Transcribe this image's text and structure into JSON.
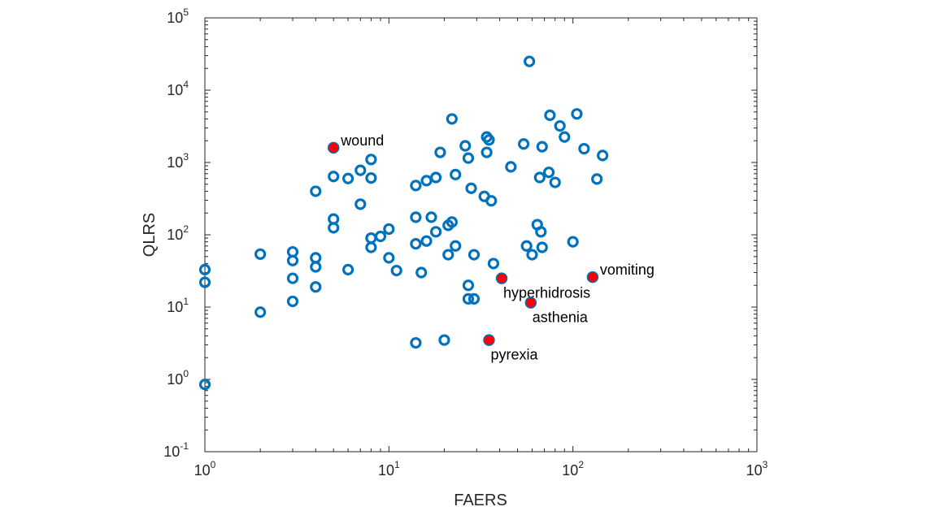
{
  "chart_data": {
    "type": "scatter",
    "title": "",
    "xlabel": "FAERS",
    "ylabel": "QLRS",
    "xscale": "log",
    "yscale": "log",
    "xlim": [
      1,
      1000
    ],
    "ylim": [
      0.1,
      100000
    ],
    "grid": false,
    "box": true,
    "x_ticks": [
      {
        "base": "10",
        "exp": "0"
      },
      {
        "base": "10",
        "exp": "1"
      },
      {
        "base": "10",
        "exp": "2"
      },
      {
        "base": "10",
        "exp": "3"
      }
    ],
    "y_ticks": [
      {
        "base": "10",
        "exp": "-1"
      },
      {
        "base": "10",
        "exp": "0"
      },
      {
        "base": "10",
        "exp": "1"
      },
      {
        "base": "10",
        "exp": "2"
      },
      {
        "base": "10",
        "exp": "3"
      },
      {
        "base": "10",
        "exp": "4"
      },
      {
        "base": "10",
        "exp": "5"
      }
    ],
    "colors": {
      "marker": "#0072BD",
      "highlight_fill": "#FF0000",
      "axis": "#262626"
    },
    "points": [
      [
        1,
        0.85
      ],
      [
        1,
        22
      ],
      [
        1,
        33
      ],
      [
        2,
        8.5
      ],
      [
        2,
        54
      ],
      [
        3,
        12
      ],
      [
        3,
        25
      ],
      [
        3,
        44
      ],
      [
        3,
        58
      ],
      [
        4,
        19
      ],
      [
        4,
        36
      ],
      [
        4,
        48
      ],
      [
        4,
        400
      ],
      [
        5,
        125
      ],
      [
        5,
        165
      ],
      [
        5,
        640
      ],
      [
        6,
        33
      ],
      [
        6,
        600
      ],
      [
        7,
        265
      ],
      [
        7,
        780
      ],
      [
        8,
        67
      ],
      [
        8,
        90
      ],
      [
        8,
        610
      ],
      [
        8,
        1100
      ],
      [
        9,
        95
      ],
      [
        10,
        48
      ],
      [
        10,
        120
      ],
      [
        11,
        32
      ],
      [
        14,
        3.2
      ],
      [
        14,
        75
      ],
      [
        14,
        175
      ],
      [
        14,
        480
      ],
      [
        15,
        30
      ],
      [
        16,
        82
      ],
      [
        16,
        560
      ],
      [
        17,
        175
      ],
      [
        18,
        110
      ],
      [
        18,
        620
      ],
      [
        19,
        1380
      ],
      [
        20,
        3.5
      ],
      [
        21,
        53
      ],
      [
        21,
        135
      ],
      [
        22,
        150
      ],
      [
        22,
        4000
      ],
      [
        23,
        70
      ],
      [
        23,
        680
      ],
      [
        26,
        1700
      ],
      [
        27,
        13
      ],
      [
        27,
        20
      ],
      [
        27,
        1150
      ],
      [
        28,
        440
      ],
      [
        29,
        13
      ],
      [
        29,
        53
      ],
      [
        33,
        340
      ],
      [
        34,
        1380
      ],
      [
        34,
        2250
      ],
      [
        35,
        2050
      ],
      [
        36,
        295
      ],
      [
        37,
        40
      ],
      [
        46,
        870
      ],
      [
        54,
        1800
      ],
      [
        56,
        70
      ],
      [
        58,
        25000
      ],
      [
        60,
        53
      ],
      [
        64,
        138
      ],
      [
        66,
        620
      ],
      [
        67,
        110
      ],
      [
        68,
        67
      ],
      [
        68,
        1650
      ],
      [
        74,
        730
      ],
      [
        75,
        4500
      ],
      [
        80,
        530
      ],
      [
        85,
        3200
      ],
      [
        90,
        2250
      ],
      [
        100,
        80
      ],
      [
        105,
        4700
      ],
      [
        115,
        1550
      ],
      [
        135,
        590
      ],
      [
        145,
        1250
      ]
    ],
    "highlighted": [
      {
        "label": "wound",
        "x": 5,
        "y": 1600,
        "anchor": "upper-right"
      },
      {
        "label": "vomiting",
        "x": 128,
        "y": 26,
        "anchor": "upper-right"
      },
      {
        "label": "hyperhidrosis",
        "x": 41,
        "y": 25,
        "anchor": "lower-right"
      },
      {
        "label": "asthenia",
        "x": 59,
        "y": 11.5,
        "anchor": "lower-right"
      },
      {
        "label": "pyrexia",
        "x": 35,
        "y": 3.5,
        "anchor": "lower-right"
      }
    ]
  }
}
